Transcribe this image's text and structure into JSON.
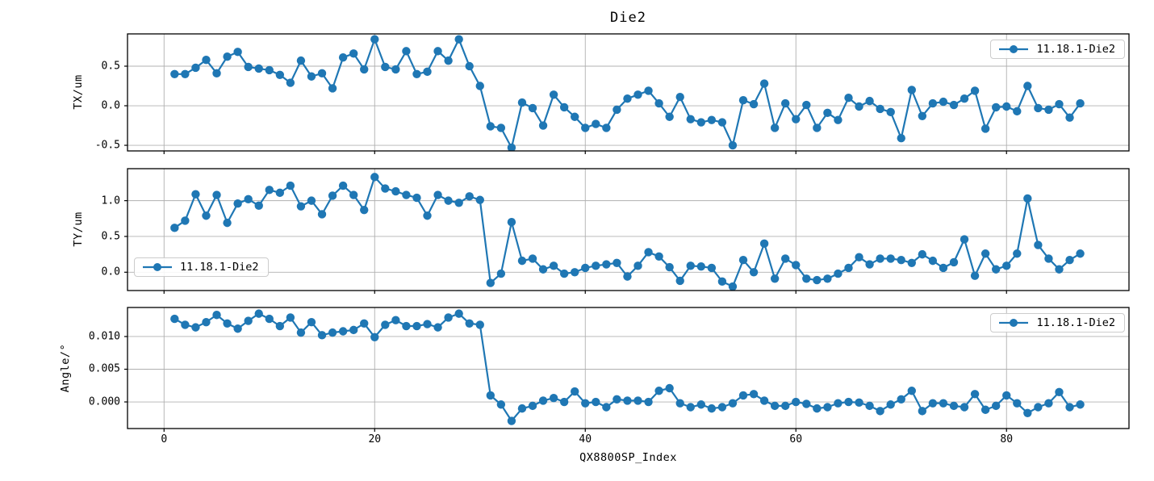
{
  "title": "Die2",
  "xlabel": "QX8800SP_Index",
  "colors": {
    "line": "#1f77b4",
    "grid": "#b0b0b0",
    "spine": "#000000",
    "legend_border": "#cccccc",
    "background": "#ffffff"
  },
  "axes": {
    "xlim": [
      -3.47,
      91.63
    ],
    "xticks": {
      "values": [
        0,
        20,
        40,
        60,
        80
      ],
      "labels": [
        "0",
        "20",
        "40",
        "60",
        "80"
      ]
    },
    "x_range": {
      "start": 1,
      "end": 87,
      "step": 1
    }
  },
  "chart_data": [
    {
      "type": "line",
      "marker": "circle",
      "ylabel": "TX/um",
      "ylim": [
        -0.571,
        0.908
      ],
      "yticks": {
        "values": [
          0.5,
          0.0,
          -0.5
        ],
        "labels": [
          "0.5",
          "0.0",
          "-0.5"
        ]
      },
      "grid": true,
      "legend_position": "upper right",
      "series": [
        {
          "name": "11.18.1-Die2",
          "values": [
            0.4,
            0.4,
            0.48,
            0.58,
            0.41,
            0.62,
            0.68,
            0.49,
            0.47,
            0.45,
            0.39,
            0.29,
            0.57,
            0.37,
            0.41,
            0.22,
            0.61,
            0.66,
            0.46,
            0.84,
            0.49,
            0.46,
            0.69,
            0.4,
            0.43,
            0.69,
            0.57,
            0.84,
            0.5,
            0.25,
            -0.26,
            -0.28,
            -0.53,
            0.04,
            -0.03,
            -0.25,
            0.14,
            -0.02,
            -0.14,
            -0.28,
            -0.23,
            -0.28,
            -0.05,
            0.09,
            0.14,
            0.19,
            0.03,
            -0.14,
            0.11,
            -0.17,
            -0.21,
            -0.18,
            -0.21,
            -0.5,
            0.07,
            0.02,
            0.28,
            -0.28,
            0.03,
            -0.17,
            0.01,
            -0.28,
            -0.09,
            -0.18,
            0.1,
            -0.01,
            0.06,
            -0.04,
            -0.08,
            -0.41,
            0.2,
            -0.13,
            0.03,
            0.05,
            0.01,
            0.09,
            0.19,
            -0.29,
            -0.02,
            -0.01,
            -0.07,
            0.25,
            -0.03,
            -0.05,
            0.02,
            -0.15,
            0.03
          ]
        }
      ]
    },
    {
      "type": "line",
      "marker": "circle",
      "ylabel": "TY/um",
      "ylim": [
        -0.256,
        1.447
      ],
      "yticks": {
        "values": [
          1.0,
          0.5,
          0.0
        ],
        "labels": [
          "1.0",
          "0.5",
          "0.0"
        ]
      },
      "grid": true,
      "legend_position": "lower left",
      "series": [
        {
          "name": "11.18.1-Die2",
          "values": [
            0.62,
            0.72,
            1.09,
            0.79,
            1.08,
            0.69,
            0.96,
            1.02,
            0.93,
            1.15,
            1.11,
            1.21,
            0.92,
            1.0,
            0.81,
            1.07,
            1.21,
            1.08,
            0.87,
            1.33,
            1.17,
            1.13,
            1.08,
            1.04,
            0.79,
            1.08,
            1.0,
            0.97,
            1.06,
            1.01,
            -0.15,
            -0.02,
            0.7,
            0.16,
            0.19,
            0.04,
            0.09,
            -0.02,
            0.0,
            0.06,
            0.09,
            0.11,
            0.13,
            -0.06,
            0.09,
            0.28,
            0.22,
            0.07,
            -0.12,
            0.09,
            0.08,
            0.06,
            -0.13,
            -0.2,
            0.17,
            0.0,
            0.4,
            -0.09,
            0.19,
            0.1,
            -0.09,
            -0.11,
            -0.09,
            -0.02,
            0.06,
            0.21,
            0.11,
            0.19,
            0.19,
            0.17,
            0.13,
            0.25,
            0.16,
            0.06,
            0.14,
            0.46,
            -0.05,
            0.26,
            0.04,
            0.09,
            0.26,
            1.03,
            0.38,
            0.19,
            0.04,
            0.17,
            0.26
          ]
        }
      ]
    },
    {
      "type": "line",
      "marker": "circle",
      "ylabel": "Angle/°",
      "ylim": [
        -0.00407,
        0.01444
      ],
      "yticks": {
        "values": [
          0.01,
          0.005,
          0.0
        ],
        "labels": [
          "0.010",
          "0.005",
          "0.000"
        ]
      },
      "grid": true,
      "legend_position": "upper right",
      "series": [
        {
          "name": "11.18.1-Die2",
          "values": [
            0.0127,
            0.0118,
            0.0114,
            0.0122,
            0.0133,
            0.012,
            0.0112,
            0.0124,
            0.0135,
            0.0127,
            0.0116,
            0.0129,
            0.0106,
            0.0122,
            0.0102,
            0.0106,
            0.0108,
            0.011,
            0.012,
            0.0099,
            0.0118,
            0.0125,
            0.0116,
            0.0116,
            0.0119,
            0.0114,
            0.0129,
            0.0135,
            0.012,
            0.0118,
            0.001,
            -0.0004,
            -0.0029,
            -0.001,
            -0.0006,
            0.0002,
            0.0006,
            0.0,
            0.0016,
            -0.0002,
            0.0,
            -0.0008,
            0.0004,
            0.0002,
            0.0002,
            0.0,
            0.0017,
            0.0021,
            -0.0002,
            -0.0008,
            -0.0004,
            -0.001,
            -0.0008,
            -0.0002,
            0.001,
            0.0012,
            0.0002,
            -0.0006,
            -0.0006,
            0.0,
            -0.0003,
            -0.001,
            -0.0008,
            -0.0002,
            0.0,
            -0.0001,
            -0.0006,
            -0.0014,
            -0.0004,
            0.0004,
            0.0017,
            -0.0014,
            -0.0002,
            -0.0002,
            -0.0006,
            -0.0008,
            0.0012,
            -0.0012,
            -0.0006,
            0.001,
            -0.0002,
            -0.0017,
            -0.0008,
            -0.0002,
            0.0015,
            -0.0008,
            -0.0004
          ]
        }
      ]
    }
  ]
}
